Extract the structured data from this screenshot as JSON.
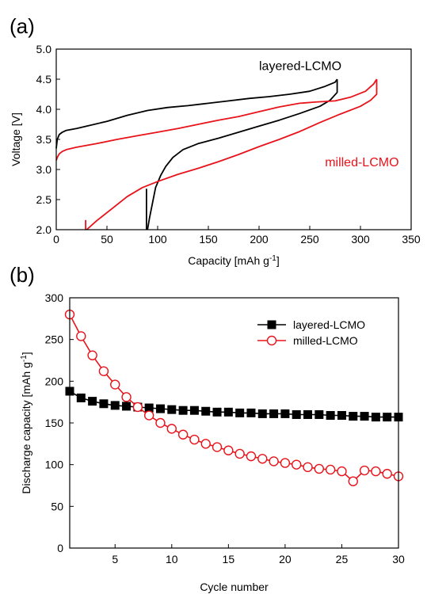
{
  "chart_data": [
    {
      "type": "line",
      "panel_label": "(a)",
      "xlabel": "Capacity [mAh g",
      "xlabel_sup": "-1",
      "xlabel_suffix": "]",
      "ylabel": "Voltage [V]",
      "xlim": [
        0,
        350
      ],
      "ylim": [
        2.0,
        5.0
      ],
      "xticks": [
        0,
        50,
        100,
        150,
        200,
        250,
        300,
        350
      ],
      "yticks": [
        2.0,
        2.5,
        3.0,
        3.5,
        4.0,
        4.5,
        5.0
      ],
      "grid": false,
      "series": [
        {
          "name": "layered-LCMO",
          "color": "#000000",
          "charge": [
            [
              0,
              3.35
            ],
            [
              1,
              3.5
            ],
            [
              3,
              3.58
            ],
            [
              6,
              3.62
            ],
            [
              10,
              3.65
            ],
            [
              20,
              3.68
            ],
            [
              30,
              3.72
            ],
            [
              50,
              3.8
            ],
            [
              70,
              3.9
            ],
            [
              90,
              3.98
            ],
            [
              110,
              4.03
            ],
            [
              130,
              4.06
            ],
            [
              150,
              4.1
            ],
            [
              170,
              4.14
            ],
            [
              190,
              4.18
            ],
            [
              210,
              4.21
            ],
            [
              230,
              4.25
            ],
            [
              250,
              4.3
            ],
            [
              265,
              4.38
            ],
            [
              275,
              4.45
            ],
            [
              277,
              4.5
            ]
          ],
          "discharge": [
            [
              277,
              4.5
            ],
            [
              277,
              4.28
            ],
            [
              270,
              4.15
            ],
            [
              260,
              4.05
            ],
            [
              240,
              3.93
            ],
            [
              220,
              3.82
            ],
            [
              200,
              3.72
            ],
            [
              180,
              3.62
            ],
            [
              160,
              3.52
            ],
            [
              140,
              3.43
            ],
            [
              125,
              3.33
            ],
            [
              115,
              3.2
            ],
            [
              108,
              3.05
            ],
            [
              103,
              2.9
            ],
            [
              98,
              2.7
            ],
            [
              95,
              2.45
            ],
            [
              92,
              2.2
            ],
            [
              90,
              2.0
            ]
          ],
          "tail": [
            [
              89,
              2.0
            ],
            [
              89,
              2.68
            ]
          ]
        },
        {
          "name": "milled-LCMO",
          "color": "#e8131b",
          "charge": [
            [
              0,
              3.15
            ],
            [
              1,
              3.2
            ],
            [
              3,
              3.26
            ],
            [
              6,
              3.3
            ],
            [
              10,
              3.33
            ],
            [
              20,
              3.37
            ],
            [
              40,
              3.43
            ],
            [
              60,
              3.5
            ],
            [
              80,
              3.56
            ],
            [
              100,
              3.62
            ],
            [
              120,
              3.68
            ],
            [
              140,
              3.75
            ],
            [
              160,
              3.82
            ],
            [
              180,
              3.88
            ],
            [
              200,
              3.96
            ],
            [
              220,
              4.04
            ],
            [
              240,
              4.1
            ],
            [
              255,
              4.12
            ],
            [
              275,
              4.14
            ],
            [
              290,
              4.2
            ],
            [
              305,
              4.3
            ],
            [
              313,
              4.42
            ],
            [
              316,
              4.5
            ]
          ],
          "discharge": [
            [
              316,
              4.5
            ],
            [
              316,
              4.25
            ],
            [
              310,
              4.15
            ],
            [
              300,
              4.05
            ],
            [
              280,
              3.92
            ],
            [
              260,
              3.78
            ],
            [
              240,
              3.63
            ],
            [
              220,
              3.5
            ],
            [
              200,
              3.38
            ],
            [
              180,
              3.25
            ],
            [
              160,
              3.13
            ],
            [
              140,
              3.02
            ],
            [
              120,
              2.92
            ],
            [
              100,
              2.8
            ],
            [
              85,
              2.7
            ],
            [
              70,
              2.55
            ],
            [
              55,
              2.35
            ],
            [
              40,
              2.15
            ],
            [
              30,
              2.0
            ]
          ],
          "tail": [
            [
              29,
              2.0
            ],
            [
              29,
              2.16
            ]
          ]
        }
      ],
      "annotations": [
        {
          "text": "layered-LCMO",
          "color": "#000000",
          "x": 200,
          "y": 4.65
        },
        {
          "text": "milled-LCMO",
          "color": "#e8131b",
          "x": 265,
          "y": 3.05
        }
      ]
    },
    {
      "type": "line",
      "panel_label": "(b)",
      "xlabel": "Cycle number",
      "ylabel": "Discharge capacity [mAh g",
      "ylabel_sup": "-1",
      "ylabel_suffix": "]",
      "xlim": [
        1,
        30
      ],
      "ylim": [
        0,
        300
      ],
      "xticks": [
        5,
        10,
        15,
        20,
        25,
        30
      ],
      "yticks": [
        0,
        50,
        100,
        150,
        200,
        250,
        300
      ],
      "grid": false,
      "legend": "top-right",
      "x": [
        1,
        2,
        3,
        4,
        5,
        6,
        7,
        8,
        9,
        10,
        11,
        12,
        13,
        14,
        15,
        16,
        17,
        18,
        19,
        20,
        21,
        22,
        23,
        24,
        25,
        26,
        27,
        28,
        29,
        30
      ],
      "series": [
        {
          "name": "layered-LCMO",
          "color": "#000000",
          "marker": "filled-square",
          "values": [
            188,
            180,
            176,
            173,
            171,
            170,
            169,
            168,
            167,
            166,
            165,
            165,
            164,
            163,
            163,
            162,
            162,
            161,
            161,
            161,
            160,
            160,
            160,
            159,
            159,
            158,
            158,
            157,
            157,
            157
          ]
        },
        {
          "name": "milled-LCMO",
          "color": "#e8131b",
          "marker": "open-circle",
          "values": [
            280,
            254,
            231,
            212,
            196,
            181,
            169,
            159,
            150,
            143,
            136,
            130,
            125,
            121,
            117,
            113,
            110,
            107,
            104,
            102,
            100,
            97,
            95,
            94,
            92,
            80,
            93,
            92,
            89,
            86
          ]
        }
      ]
    }
  ]
}
